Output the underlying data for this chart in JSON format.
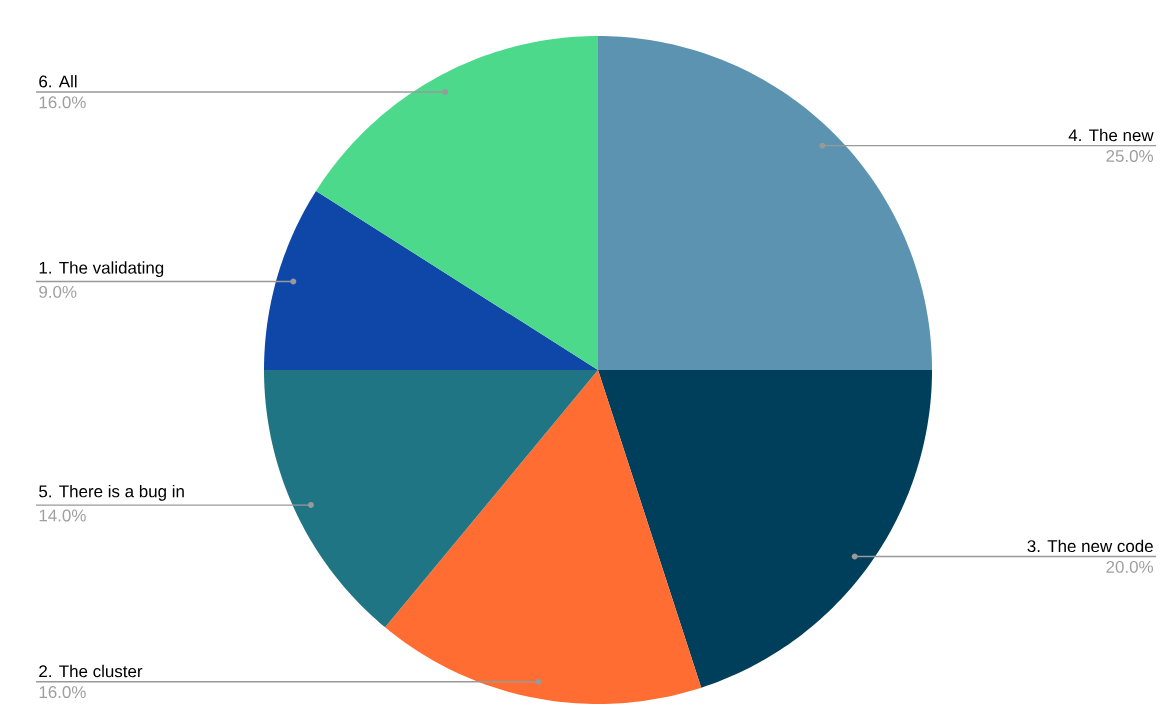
{
  "chart_data": {
    "type": "pie",
    "categories": [
      "4. The new",
      "3. The new code",
      "2. The cluster",
      "5. There is a bug in",
      "1. The validating",
      "6. All"
    ],
    "values": [
      25,
      20,
      16,
      14,
      9,
      16
    ],
    "colors": [
      "#5b93b1",
      "#003f5c",
      "#ff6d33",
      "#1f7583",
      "#0f47a9",
      "#4cd98b"
    ],
    "value_labels": [
      "25.0%",
      "20.0%",
      "16.0%",
      "14.0%",
      "9.0%",
      "16.0%"
    ]
  }
}
